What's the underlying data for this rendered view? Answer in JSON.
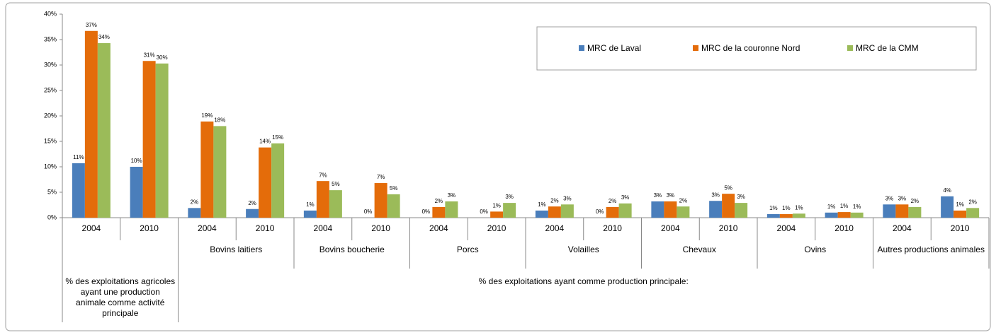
{
  "chart_data": {
    "type": "bar",
    "categories": [
      "2004",
      "2010",
      "2004",
      "2010",
      "2004",
      "2010",
      "2004",
      "2010",
      "2004",
      "2010",
      "2004",
      "2010",
      "2004",
      "2010",
      "2004",
      "2010"
    ],
    "groups": [
      "% des exploitations agricoles ayant une production animale comme activité principale",
      "Bovins laitiers",
      "Bovins boucherie",
      "Porcs",
      "Volailles",
      "Chevaux",
      "Ovins",
      "Autres productions animales"
    ],
    "group_title": "% des exploitations ayant comme production principale:",
    "series": [
      {
        "name": "MRC de Laval",
        "color": "#4a7ebb",
        "values": [
          10.7,
          10.0,
          1.9,
          1.7,
          1.4,
          0,
          0,
          0,
          1.4,
          0,
          3.2,
          3.3,
          0.7,
          1.0,
          2.6,
          4.2
        ],
        "value_labels": [
          "11%",
          "10%",
          "2%",
          "2%",
          "1%",
          "0%",
          "0%",
          "0%",
          "1%",
          "0%",
          "3%",
          "3%",
          "1%",
          "1%",
          "3%",
          "4%"
        ]
      },
      {
        "name": "MRC de la couronne Nord",
        "color": "#e46c0a",
        "values": [
          36.7,
          30.8,
          18.9,
          13.8,
          7.2,
          6.8,
          2.1,
          1.2,
          2.2,
          2.1,
          3.2,
          4.7,
          0.7,
          1.1,
          2.6,
          1.4
        ],
        "value_labels": [
          "37%",
          "31%",
          "19%",
          "14%",
          "7%",
          "7%",
          "2%",
          "1%",
          "2%",
          "2%",
          "3%",
          "5%",
          "1%",
          "1%",
          "3%",
          "1%"
        ]
      },
      {
        "name": "MRC de la CMM",
        "color": "#9bbb59",
        "values": [
          34.3,
          30.3,
          18.0,
          14.6,
          5.4,
          4.6,
          3.2,
          2.9,
          2.6,
          2.8,
          2.2,
          2.9,
          0.8,
          1.0,
          2.1,
          1.9
        ],
        "value_labels": [
          "34%",
          "30%",
          "18%",
          "15%",
          "5%",
          "5%",
          "3%",
          "3%",
          "3%",
          "3%",
          "2%",
          "3%",
          "1%",
          "1%",
          "2%",
          "2%"
        ]
      }
    ],
    "ylim": [
      0,
      40
    ],
    "yticks": [
      {
        "value": 0,
        "label": "0%"
      },
      {
        "value": 5,
        "label": "5%"
      },
      {
        "value": 10,
        "label": "10%"
      },
      {
        "value": 15,
        "label": "15%"
      },
      {
        "value": 20,
        "label": "20%"
      },
      {
        "value": 25,
        "label": "25%"
      },
      {
        "value": 30,
        "label": "30%"
      },
      {
        "value": 35,
        "label": "35%"
      },
      {
        "value": 40,
        "label": "40%"
      }
    ],
    "legend": "top-right",
    "grid": false
  }
}
